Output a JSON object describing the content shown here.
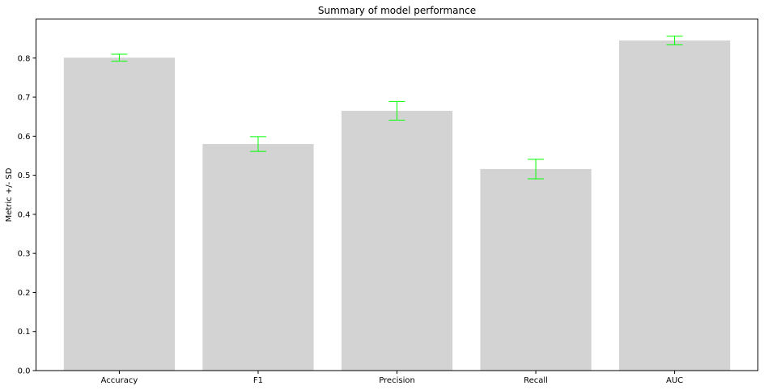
{
  "chart_data": {
    "type": "bar",
    "title": "Summary of model performance",
    "xlabel": "",
    "ylabel": "Metric +/- SD",
    "categories": [
      "Accuracy",
      "F1",
      "Precision",
      "Recall",
      "AUC"
    ],
    "values": [
      0.801,
      0.58,
      0.665,
      0.516,
      0.845
    ],
    "errors": [
      0.009,
      0.019,
      0.024,
      0.025,
      0.011
    ],
    "ylim": [
      0,
      0.9
    ],
    "yticks": [
      "0.0",
      "0.1",
      "0.2",
      "0.3",
      "0.4",
      "0.5",
      "0.6",
      "0.7",
      "0.8"
    ],
    "bar_color": "#d3d3d3",
    "error_color": "#00ff00",
    "grid": false,
    "legend": "none"
  }
}
